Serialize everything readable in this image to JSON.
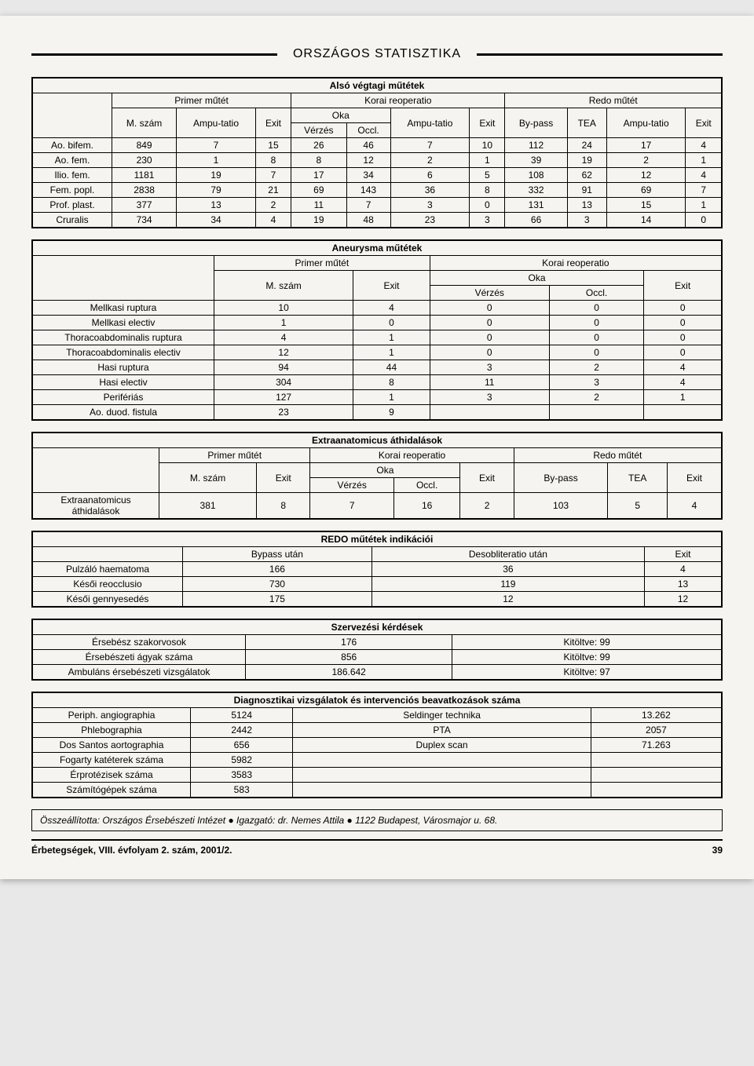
{
  "pageTitle": "ORSZÁGOS STATISZTIKA",
  "table1": {
    "title": "Alsó végtagi műtétek",
    "groups": [
      "Primer műtét",
      "Korai reoperatio",
      "Redo műtét"
    ],
    "headers": {
      "mszam": "M. szám",
      "amputatio": "Ampu-tatio",
      "exit": "Exit",
      "oka": "Oka",
      "verzes": "Vérzés",
      "occl": "Occl.",
      "bypass": "By-pass",
      "tea": "TEA"
    },
    "rows": [
      {
        "label": "Ao. bifem.",
        "v": [
          "849",
          "7",
          "15",
          "26",
          "46",
          "7",
          "10",
          "112",
          "24",
          "17",
          "4"
        ]
      },
      {
        "label": "Ao. fem.",
        "v": [
          "230",
          "1",
          "8",
          "8",
          "12",
          "2",
          "1",
          "39",
          "19",
          "2",
          "1"
        ]
      },
      {
        "label": "Ilio. fem.",
        "v": [
          "1181",
          "19",
          "7",
          "17",
          "34",
          "6",
          "5",
          "108",
          "62",
          "12",
          "4"
        ]
      },
      {
        "label": "Fem. popl.",
        "v": [
          "2838",
          "79",
          "21",
          "69",
          "143",
          "36",
          "8",
          "332",
          "91",
          "69",
          "7"
        ]
      },
      {
        "label": "Prof. plast.",
        "v": [
          "377",
          "13",
          "2",
          "11",
          "7",
          "3",
          "0",
          "131",
          "13",
          "15",
          "1"
        ]
      },
      {
        "label": "Cruralis",
        "v": [
          "734",
          "34",
          "4",
          "19",
          "48",
          "23",
          "3",
          "66",
          "3",
          "14",
          "0"
        ]
      }
    ]
  },
  "table2": {
    "title": "Aneurysma műtétek",
    "groups": [
      "Primer műtét",
      "Korai reoperatio"
    ],
    "headers": {
      "mszam": "M. szám",
      "exit": "Exit",
      "oka": "Oka",
      "verzes": "Vérzés",
      "occl": "Occl."
    },
    "rows": [
      {
        "label": "Mellkasi ruptura",
        "v": [
          "10",
          "4",
          "0",
          "0",
          "0"
        ]
      },
      {
        "label": "Mellkasi electiv",
        "v": [
          "1",
          "0",
          "0",
          "0",
          "0"
        ]
      },
      {
        "label": "Thoracoabdominalis ruptura",
        "v": [
          "4",
          "1",
          "0",
          "0",
          "0"
        ]
      },
      {
        "label": "Thoracoabdominalis electiv",
        "v": [
          "12",
          "1",
          "0",
          "0",
          "0"
        ]
      },
      {
        "label": "Hasi ruptura",
        "v": [
          "94",
          "44",
          "3",
          "2",
          "4"
        ]
      },
      {
        "label": "Hasi electiv",
        "v": [
          "304",
          "8",
          "11",
          "3",
          "4"
        ]
      },
      {
        "label": "Perifériás",
        "v": [
          "127",
          "1",
          "3",
          "2",
          "1"
        ]
      },
      {
        "label": "Ao. duod. fistula",
        "v": [
          "23",
          "9",
          "",
          "",
          ""
        ]
      }
    ]
  },
  "table3": {
    "title": "Extraanatomicus áthidalások",
    "groups": [
      "Primer műtét",
      "Korai reoperatio",
      "Redo műtét"
    ],
    "headers": {
      "mszam": "M. szám",
      "exit": "Exit",
      "oka": "Oka",
      "verzes": "Vérzés",
      "occl": "Occl.",
      "bypass": "By-pass",
      "tea": "TEA"
    },
    "rows": [
      {
        "label": "Extraanatomicus áthidalások",
        "v": [
          "381",
          "8",
          "7",
          "16",
          "2",
          "103",
          "5",
          "4"
        ]
      }
    ]
  },
  "table4": {
    "title": "REDO műtétek indikációi",
    "headers": [
      "Bypass után",
      "Desobliteratio után",
      "Exit"
    ],
    "rows": [
      {
        "label": "Pulzáló haematoma",
        "v": [
          "166",
          "36",
          "4"
        ]
      },
      {
        "label": "Késői reocclusio",
        "v": [
          "730",
          "119",
          "13"
        ]
      },
      {
        "label": "Késői gennyesedés",
        "v": [
          "175",
          "12",
          "12"
        ]
      }
    ]
  },
  "table5": {
    "title": "Szervezési kérdések",
    "rows": [
      {
        "label": "Érsebész szakorvosok",
        "v": [
          "176",
          "Kitöltve: 99"
        ]
      },
      {
        "label": "Érsebészeti ágyak száma",
        "v": [
          "856",
          "Kitöltve: 99"
        ]
      },
      {
        "label": "Ambuláns érsebészeti vizsgálatok",
        "v": [
          "186.642",
          "Kitöltve: 97"
        ]
      }
    ]
  },
  "table6": {
    "title": "Diagnosztikai vizsgálatok és intervenciós beavatkozások száma",
    "rows": [
      {
        "l1": "Periph. angiographia",
        "v1": "5124",
        "l2": "Seldinger technika",
        "v2": "13.262"
      },
      {
        "l1": "Phlebographia",
        "v1": "2442",
        "l2": "PTA",
        "v2": "2057"
      },
      {
        "l1": "Dos Santos aortographia",
        "v1": "656",
        "l2": "Duplex scan",
        "v2": "71.263"
      },
      {
        "l1": "Fogarty katéterek száma",
        "v1": "5982",
        "l2": "",
        "v2": ""
      },
      {
        "l1": "Érprotézisek száma",
        "v1": "3583",
        "l2": "",
        "v2": ""
      },
      {
        "l1": "Számítógépek száma",
        "v1": "583",
        "l2": "",
        "v2": ""
      }
    ]
  },
  "footer": "Összeállította: Országos Érsebészeti Intézet ● Igazgató: dr. Nemes Attila ● 1122 Budapest, Városmajor u. 68.",
  "bottomLeft": "Érbetegségek, VIII. évfolyam 2. szám, 2001/2.",
  "bottomRight": "39"
}
